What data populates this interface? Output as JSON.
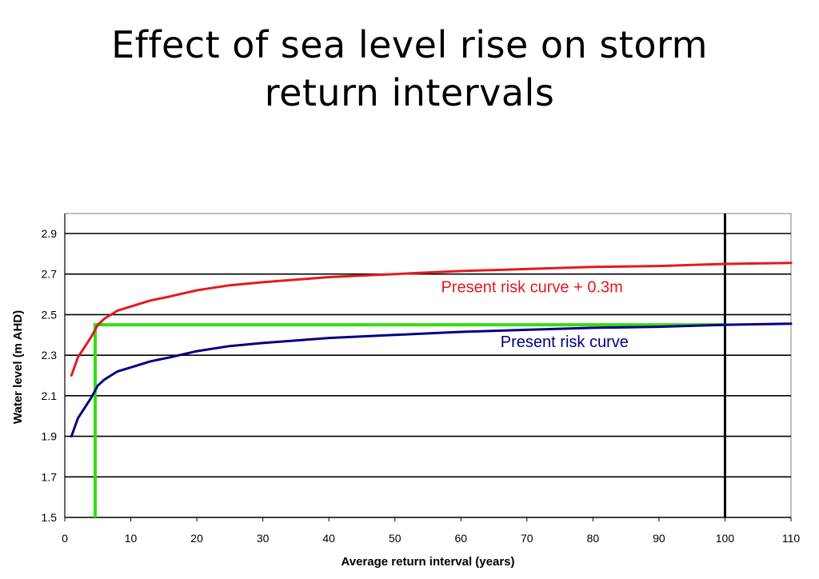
{
  "slide": {
    "title_line1": "Effect of sea level rise on storm",
    "title_line2": "return intervals"
  },
  "chart_data": {
    "type": "line",
    "title": "Effect of sea level rise on storm return intervals",
    "xlabel": "Average return interval (years)",
    "ylabel": "Water level (m AHD)",
    "xlim": [
      0,
      110
    ],
    "ylim": [
      1.5,
      2.95
    ],
    "x_ticks": [
      0,
      10,
      20,
      30,
      40,
      50,
      60,
      70,
      80,
      90,
      100,
      110
    ],
    "y_ticks": [
      1.5,
      1.7,
      1.9,
      2.1,
      2.3,
      2.5,
      2.7,
      2.9
    ],
    "grid": "horizontal",
    "series": [
      {
        "name": "Present risk curve + 0.3m",
        "color": "#e31a1c",
        "points": [
          [
            1,
            2.2
          ],
          [
            2,
            2.29
          ],
          [
            3,
            2.34
          ],
          [
            4,
            2.39
          ],
          [
            5,
            2.45
          ],
          [
            6,
            2.48
          ],
          [
            8,
            2.52
          ],
          [
            10,
            2.54
          ],
          [
            13,
            2.57
          ],
          [
            16,
            2.59
          ],
          [
            20,
            2.62
          ],
          [
            25,
            2.645
          ],
          [
            30,
            2.66
          ],
          [
            40,
            2.685
          ],
          [
            50,
            2.7
          ],
          [
            60,
            2.715
          ],
          [
            70,
            2.725
          ],
          [
            80,
            2.735
          ],
          [
            90,
            2.74
          ],
          [
            100,
            2.75
          ],
          [
            110,
            2.755
          ]
        ]
      },
      {
        "name": "Present risk curve",
        "color": "#000080",
        "points": [
          [
            1,
            1.9
          ],
          [
            2,
            1.99
          ],
          [
            3,
            2.04
          ],
          [
            4,
            2.09
          ],
          [
            5,
            2.15
          ],
          [
            6,
            2.18
          ],
          [
            8,
            2.22
          ],
          [
            10,
            2.24
          ],
          [
            13,
            2.27
          ],
          [
            16,
            2.29
          ],
          [
            20,
            2.32
          ],
          [
            25,
            2.345
          ],
          [
            30,
            2.36
          ],
          [
            40,
            2.385
          ],
          [
            50,
            2.4
          ],
          [
            60,
            2.415
          ],
          [
            70,
            2.425
          ],
          [
            80,
            2.435
          ],
          [
            90,
            2.44
          ],
          [
            100,
            2.45
          ],
          [
            110,
            2.455
          ]
        ]
      }
    ],
    "reference_lines": [
      {
        "kind": "vertical",
        "x": 100,
        "color": "#000000"
      },
      {
        "kind": "vertical",
        "x": 4.6,
        "y_from": 1.5,
        "y_to": 2.45,
        "color": "#33dd11"
      },
      {
        "kind": "horizontal",
        "y": 2.45,
        "x_from": 4.6,
        "x_to": 100,
        "color": "#33dd11"
      }
    ],
    "annotations": [
      {
        "text": "Present risk curve + 0.3m",
        "x": 57,
        "y": 2.61,
        "color": "#e31a1c"
      },
      {
        "text": "Present risk curve",
        "x": 66,
        "y": 2.34,
        "color": "#000080"
      }
    ]
  }
}
